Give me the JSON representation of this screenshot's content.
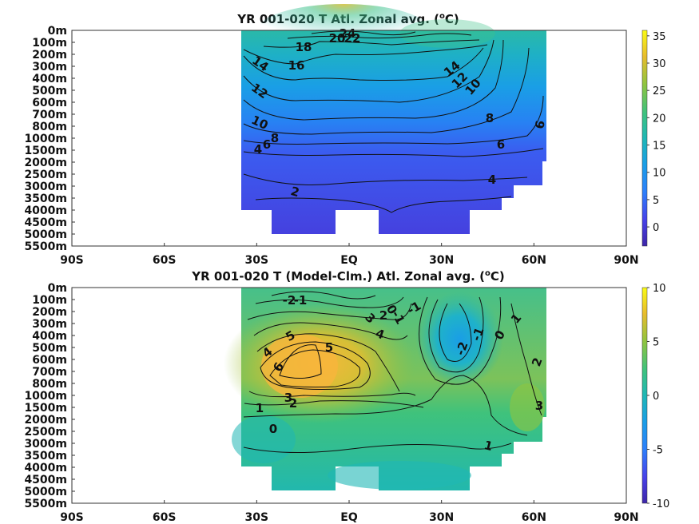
{
  "chart_data": [
    {
      "type": "heatmap",
      "title": "YR 001-020 T Atl. Zonal avg. (",
      "title_sup": "o",
      "title_end": "C)",
      "x_ticks": [
        "90S",
        "60S",
        "30S",
        "EQ",
        "30N",
        "60N",
        "90N"
      ],
      "y_ticks": [
        "0m",
        "100m",
        "200m",
        "300m",
        "400m",
        "500m",
        "600m",
        "700m",
        "800m",
        "1000m",
        "1500m",
        "2000m",
        "2500m",
        "3000m",
        "3500m",
        "4000m",
        "4500m",
        "5000m",
        "5500m"
      ],
      "colorbar": {
        "range": [
          -3.5,
          36
        ],
        "ticks": [
          "35",
          "30",
          "25",
          "20",
          "15",
          "10",
          "5",
          "0"
        ],
        "tick_values": [
          35,
          30,
          25,
          20,
          15,
          10,
          5,
          0
        ]
      },
      "contour_labels": [
        "24",
        "20",
        "22",
        "18",
        "16",
        "14",
        "12",
        "10",
        "8",
        "6",
        "4",
        "2",
        "14",
        "12",
        "10",
        "8",
        "6",
        "6",
        "4"
      ]
    },
    {
      "type": "heatmap",
      "title": "YR 001-020 T (Model-Clm.) Atl. Zonal avg. (",
      "title_sup": "o",
      "title_end": "C)",
      "x_ticks": [
        "90S",
        "60S",
        "30S",
        "EQ",
        "30N",
        "60N",
        "90N"
      ],
      "y_ticks": [
        "0m",
        "100m",
        "200m",
        "300m",
        "400m",
        "500m",
        "600m",
        "700m",
        "800m",
        "1000m",
        "1500m",
        "2000m",
        "2500m",
        "3000m",
        "3500m",
        "4000m",
        "4500m",
        "5000m",
        "5500m"
      ],
      "colorbar": {
        "range": [
          -10,
          10
        ],
        "ticks": [
          "10",
          "5",
          "0",
          "-5",
          "-10"
        ],
        "tick_values": [
          10,
          5,
          0,
          -5,
          -10
        ]
      },
      "contour_labels": [
        "-2",
        "-1",
        "0",
        "-1",
        "-1",
        "2",
        "3",
        "4",
        "5",
        "5",
        "4",
        "6",
        "3",
        "2",
        "1",
        "0",
        "-2",
        "-1",
        "0",
        "1",
        "2",
        "3",
        "1"
      ]
    }
  ],
  "colors": {
    "low": "#3e26a8",
    "mid": "#1fb7b5",
    "high": "#f9fb15",
    "land": "#ffffff"
  }
}
